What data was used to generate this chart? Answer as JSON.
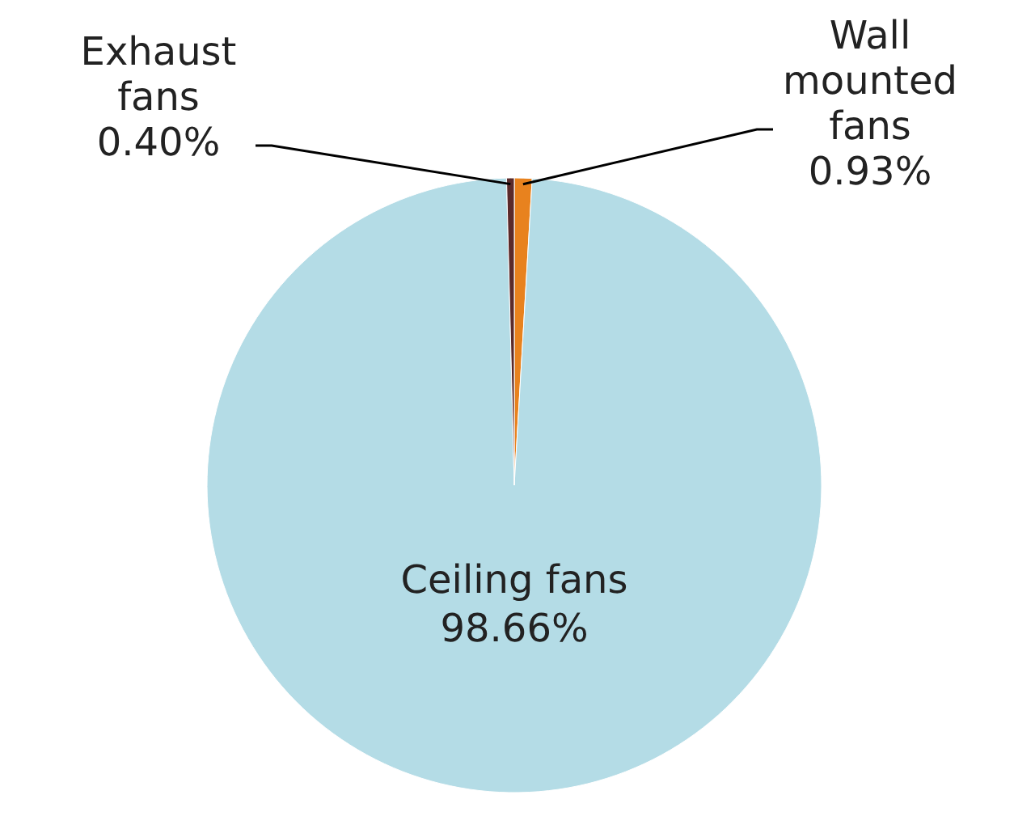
{
  "chart_data": {
    "type": "pie",
    "categories": [
      "Wall mounted fans",
      "Ceiling fans",
      "Exhaust fans"
    ],
    "values": [
      0.93,
      98.66,
      0.4
    ],
    "colors": [
      "#e8821e",
      "#b4dce6",
      "#5a2a2a"
    ],
    "value_labels": [
      "0.93%",
      "98.66%",
      "0.40%"
    ]
  }
}
